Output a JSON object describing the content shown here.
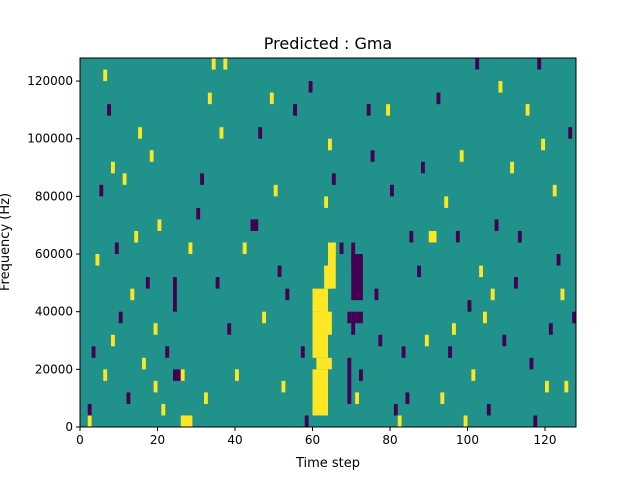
{
  "chart_data": {
    "type": "heatmap",
    "title": "Predicted : Gma",
    "xlabel": "Time step",
    "ylabel": "Frequency (Hz)",
    "xlim": [
      0,
      128
    ],
    "ylim": [
      0,
      128000
    ],
    "x_ticks": [
      0,
      20,
      40,
      60,
      80,
      100,
      120
    ],
    "x_tick_labels": [
      "0",
      "20",
      "40",
      "60",
      "80",
      "100",
      "120"
    ],
    "y_ticks": [
      0,
      20000,
      40000,
      60000,
      80000,
      100000,
      120000
    ],
    "y_tick_labels": [
      "0",
      "20000",
      "40000",
      "60000",
      "80000",
      "100000",
      "120000"
    ],
    "grid": false,
    "legend": "none",
    "colormap": "viridis",
    "value_levels": [
      -1,
      0,
      1
    ],
    "colors": {
      "low": "#440154",
      "mid": "#21918c",
      "high": "#fde725"
    },
    "background_value": 0,
    "bin_height_hz": 4000,
    "cells": [
      {
        "x": 2,
        "y": 0,
        "w": 1,
        "h": 1,
        "v": 1
      },
      {
        "x": 2,
        "y": 4000,
        "w": 1,
        "h": 1,
        "v": -1
      },
      {
        "x": 3,
        "y": 24000,
        "w": 1,
        "h": 1,
        "v": -1
      },
      {
        "x": 4,
        "y": 56000,
        "w": 1,
        "h": 1,
        "v": 1
      },
      {
        "x": 5,
        "y": 80000,
        "w": 1,
        "h": 1,
        "v": -1
      },
      {
        "x": 6,
        "y": 16000,
        "w": 1,
        "h": 1,
        "v": 1
      },
      {
        "x": 6,
        "y": 120000,
        "w": 1,
        "h": 1,
        "v": 1
      },
      {
        "x": 7,
        "y": 108000,
        "w": 1,
        "h": 1,
        "v": -1
      },
      {
        "x": 8,
        "y": 28000,
        "w": 1,
        "h": 1,
        "v": 1
      },
      {
        "x": 8,
        "y": 88000,
        "w": 1,
        "h": 1,
        "v": 1
      },
      {
        "x": 9,
        "y": 60000,
        "w": 1,
        "h": 1,
        "v": -1
      },
      {
        "x": 10,
        "y": 36000,
        "w": 1,
        "h": 1,
        "v": -1
      },
      {
        "x": 11,
        "y": 84000,
        "w": 1,
        "h": 1,
        "v": 1
      },
      {
        "x": 12,
        "y": 8000,
        "w": 1,
        "h": 1,
        "v": -1
      },
      {
        "x": 13,
        "y": 44000,
        "w": 1,
        "h": 1,
        "v": 1
      },
      {
        "x": 14,
        "y": 64000,
        "w": 1,
        "h": 1,
        "v": 1
      },
      {
        "x": 15,
        "y": 100000,
        "w": 1,
        "h": 1,
        "v": 1
      },
      {
        "x": 16,
        "y": 20000,
        "w": 1,
        "h": 1,
        "v": 1
      },
      {
        "x": 17,
        "y": 48000,
        "w": 1,
        "h": 1,
        "v": -1
      },
      {
        "x": 18,
        "y": 92000,
        "w": 1,
        "h": 1,
        "v": 1
      },
      {
        "x": 19,
        "y": 32000,
        "w": 1,
        "h": 1,
        "v": 1
      },
      {
        "x": 19,
        "y": 12000,
        "w": 1,
        "h": 1,
        "v": 1
      },
      {
        "x": 20,
        "y": 68000,
        "w": 1,
        "h": 1,
        "v": 1
      },
      {
        "x": 21,
        "y": 4000,
        "w": 1,
        "h": 1,
        "v": 1
      },
      {
        "x": 22,
        "y": 24000,
        "w": 1,
        "h": 1,
        "v": -1
      },
      {
        "x": 24,
        "y": 40000,
        "w": 1,
        "h": 3,
        "v": -1
      },
      {
        "x": 24,
        "y": 16000,
        "w": 2,
        "h": 1,
        "v": -1
      },
      {
        "x": 26,
        "y": 0,
        "w": 3,
        "h": 1,
        "v": 1
      },
      {
        "x": 26,
        "y": 16000,
        "w": 1,
        "h": 1,
        "v": 1
      },
      {
        "x": 28,
        "y": 60000,
        "w": 1,
        "h": 1,
        "v": 1
      },
      {
        "x": 30,
        "y": 72000,
        "w": 1,
        "h": 1,
        "v": -1
      },
      {
        "x": 31,
        "y": 84000,
        "w": 1,
        "h": 1,
        "v": -1
      },
      {
        "x": 32,
        "y": 8000,
        "w": 1,
        "h": 1,
        "v": 1
      },
      {
        "x": 33,
        "y": 112000,
        "w": 1,
        "h": 1,
        "v": 1
      },
      {
        "x": 34,
        "y": 124000,
        "w": 1,
        "h": 1,
        "v": 1
      },
      {
        "x": 35,
        "y": 48000,
        "w": 1,
        "h": 1,
        "v": -1
      },
      {
        "x": 36,
        "y": 100000,
        "w": 1,
        "h": 1,
        "v": 1
      },
      {
        "x": 37,
        "y": 124000,
        "w": 1,
        "h": 1,
        "v": 1
      },
      {
        "x": 38,
        "y": 32000,
        "w": 1,
        "h": 1,
        "v": -1
      },
      {
        "x": 40,
        "y": 16000,
        "w": 1,
        "h": 1,
        "v": 1
      },
      {
        "x": 42,
        "y": 60000,
        "w": 1,
        "h": 1,
        "v": 1
      },
      {
        "x": 44,
        "y": 68000,
        "w": 2,
        "h": 1,
        "v": -1
      },
      {
        "x": 46,
        "y": 100000,
        "w": 1,
        "h": 1,
        "v": -1
      },
      {
        "x": 47,
        "y": 36000,
        "w": 1,
        "h": 1,
        "v": 1
      },
      {
        "x": 49,
        "y": 112000,
        "w": 1,
        "h": 1,
        "v": 1
      },
      {
        "x": 50,
        "y": 80000,
        "w": 1,
        "h": 1,
        "v": 1
      },
      {
        "x": 51,
        "y": 52000,
        "w": 1,
        "h": 1,
        "v": -1
      },
      {
        "x": 52,
        "y": 12000,
        "w": 1,
        "h": 1,
        "v": 1
      },
      {
        "x": 53,
        "y": 44000,
        "w": 1,
        "h": 1,
        "v": -1
      },
      {
        "x": 55,
        "y": 108000,
        "w": 1,
        "h": 1,
        "v": -1
      },
      {
        "x": 57,
        "y": 24000,
        "w": 1,
        "h": 1,
        "v": -1
      },
      {
        "x": 58,
        "y": 0,
        "w": 1,
        "h": 1,
        "v": -1
      },
      {
        "x": 59,
        "y": 116000,
        "w": 1,
        "h": 1,
        "v": -1
      },
      {
        "x": 60,
        "y": 4000,
        "w": 4,
        "h": 4,
        "v": 1
      },
      {
        "x": 60,
        "y": 24000,
        "w": 4,
        "h": 4,
        "v": 1
      },
      {
        "x": 60,
        "y": 40000,
        "w": 4,
        "h": 2,
        "v": 1
      },
      {
        "x": 61,
        "y": 20000,
        "w": 4,
        "h": 1,
        "v": 1
      },
      {
        "x": 62,
        "y": 32000,
        "w": 3,
        "h": 2,
        "v": 1
      },
      {
        "x": 63,
        "y": 48000,
        "w": 2,
        "h": 2,
        "v": 1
      },
      {
        "x": 64,
        "y": 48000,
        "w": 2,
        "h": 4,
        "v": 1
      },
      {
        "x": 65,
        "y": 60000,
        "w": 1,
        "h": 1,
        "v": 1
      },
      {
        "x": 63,
        "y": 76000,
        "w": 1,
        "h": 1,
        "v": 1
      },
      {
        "x": 64,
        "y": 96000,
        "w": 1,
        "h": 1,
        "v": 1
      },
      {
        "x": 65,
        "y": 84000,
        "w": 1,
        "h": 1,
        "v": -1
      },
      {
        "x": 67,
        "y": 60000,
        "w": 1,
        "h": 1,
        "v": -1
      },
      {
        "x": 69,
        "y": 36000,
        "w": 1,
        "h": 1,
        "v": -1
      },
      {
        "x": 69,
        "y": 8000,
        "w": 1,
        "h": 4,
        "v": -1
      },
      {
        "x": 70,
        "y": 32000,
        "w": 1,
        "h": 2,
        "v": -1
      },
      {
        "x": 70,
        "y": 44000,
        "w": 3,
        "h": 4,
        "v": -1
      },
      {
        "x": 70,
        "y": 56000,
        "w": 1,
        "h": 2,
        "v": -1
      },
      {
        "x": 71,
        "y": 8000,
        "w": 1,
        "h": 1,
        "v": 1
      },
      {
        "x": 71,
        "y": 36000,
        "w": 2,
        "h": 1,
        "v": -1
      },
      {
        "x": 72,
        "y": 16000,
        "w": 1,
        "h": 1,
        "v": -1
      },
      {
        "x": 74,
        "y": 108000,
        "w": 1,
        "h": 1,
        "v": -1
      },
      {
        "x": 75,
        "y": 92000,
        "w": 1,
        "h": 1,
        "v": -1
      },
      {
        "x": 76,
        "y": 44000,
        "w": 1,
        "h": 1,
        "v": -1
      },
      {
        "x": 77,
        "y": 28000,
        "w": 1,
        "h": 1,
        "v": -1
      },
      {
        "x": 79,
        "y": 108000,
        "w": 1,
        "h": 1,
        "v": 1
      },
      {
        "x": 80,
        "y": 80000,
        "w": 1,
        "h": 1,
        "v": -1
      },
      {
        "x": 81,
        "y": 4000,
        "w": 1,
        "h": 1,
        "v": -1
      },
      {
        "x": 82,
        "y": 0,
        "w": 1,
        "h": 1,
        "v": 1
      },
      {
        "x": 83,
        "y": 24000,
        "w": 1,
        "h": 1,
        "v": -1
      },
      {
        "x": 84,
        "y": 8000,
        "w": 1,
        "h": 1,
        "v": -1
      },
      {
        "x": 85,
        "y": 64000,
        "w": 1,
        "h": 1,
        "v": -1
      },
      {
        "x": 87,
        "y": 52000,
        "w": 1,
        "h": 1,
        "v": -1
      },
      {
        "x": 88,
        "y": 88000,
        "w": 1,
        "h": 1,
        "v": -1
      },
      {
        "x": 89,
        "y": 28000,
        "w": 1,
        "h": 1,
        "v": 1
      },
      {
        "x": 90,
        "y": 64000,
        "w": 2,
        "h": 1,
        "v": 1
      },
      {
        "x": 92,
        "y": 112000,
        "w": 1,
        "h": 1,
        "v": -1
      },
      {
        "x": 93,
        "y": 8000,
        "w": 1,
        "h": 1,
        "v": 1
      },
      {
        "x": 94,
        "y": 76000,
        "w": 1,
        "h": 1,
        "v": 1
      },
      {
        "x": 95,
        "y": 24000,
        "w": 1,
        "h": 1,
        "v": -1
      },
      {
        "x": 96,
        "y": 32000,
        "w": 1,
        "h": 1,
        "v": 1
      },
      {
        "x": 97,
        "y": 64000,
        "w": 1,
        "h": 1,
        "v": -1
      },
      {
        "x": 98,
        "y": 92000,
        "w": 1,
        "h": 1,
        "v": 1
      },
      {
        "x": 99,
        "y": 0,
        "w": 1,
        "h": 1,
        "v": 1
      },
      {
        "x": 100,
        "y": 40000,
        "w": 1,
        "h": 1,
        "v": -1
      },
      {
        "x": 101,
        "y": 16000,
        "w": 1,
        "h": 1,
        "v": 1
      },
      {
        "x": 102,
        "y": 124000,
        "w": 1,
        "h": 1,
        "v": -1
      },
      {
        "x": 103,
        "y": 52000,
        "w": 1,
        "h": 1,
        "v": 1
      },
      {
        "x": 104,
        "y": 36000,
        "w": 1,
        "h": 1,
        "v": 1
      },
      {
        "x": 105,
        "y": 4000,
        "w": 1,
        "h": 1,
        "v": -1
      },
      {
        "x": 106,
        "y": 44000,
        "w": 1,
        "h": 1,
        "v": 1
      },
      {
        "x": 107,
        "y": 68000,
        "w": 1,
        "h": 1,
        "v": -1
      },
      {
        "x": 108,
        "y": 116000,
        "w": 1,
        "h": 1,
        "v": 1
      },
      {
        "x": 109,
        "y": 28000,
        "w": 1,
        "h": 1,
        "v": -1
      },
      {
        "x": 111,
        "y": 88000,
        "w": 1,
        "h": 1,
        "v": 1
      },
      {
        "x": 112,
        "y": 48000,
        "w": 1,
        "h": 1,
        "v": -1
      },
      {
        "x": 113,
        "y": 64000,
        "w": 1,
        "h": 1,
        "v": -1
      },
      {
        "x": 115,
        "y": 108000,
        "w": 1,
        "h": 1,
        "v": 1
      },
      {
        "x": 116,
        "y": 20000,
        "w": 1,
        "h": 1,
        "v": -1
      },
      {
        "x": 117,
        "y": 0,
        "w": 1,
        "h": 1,
        "v": -1
      },
      {
        "x": 118,
        "y": 124000,
        "w": 1,
        "h": 1,
        "v": -1
      },
      {
        "x": 119,
        "y": 96000,
        "w": 1,
        "h": 1,
        "v": 1
      },
      {
        "x": 120,
        "y": 12000,
        "w": 1,
        "h": 1,
        "v": 1
      },
      {
        "x": 121,
        "y": 32000,
        "w": 1,
        "h": 1,
        "v": -1
      },
      {
        "x": 122,
        "y": 80000,
        "w": 1,
        "h": 1,
        "v": 1
      },
      {
        "x": 123,
        "y": 56000,
        "w": 1,
        "h": 1,
        "v": -1
      },
      {
        "x": 124,
        "y": 44000,
        "w": 1,
        "h": 1,
        "v": 1
      },
      {
        "x": 125,
        "y": 12000,
        "w": 1,
        "h": 1,
        "v": 1
      },
      {
        "x": 126,
        "y": 100000,
        "w": 1,
        "h": 1,
        "v": -1
      },
      {
        "x": 127,
        "y": 36000,
        "w": 1,
        "h": 1,
        "v": -1
      }
    ]
  }
}
